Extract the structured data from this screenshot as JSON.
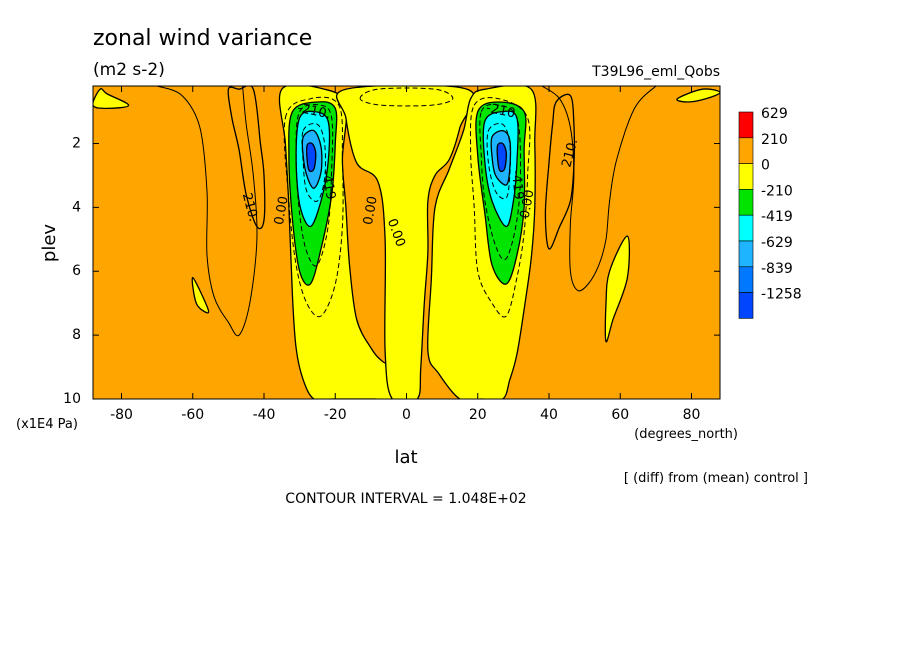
{
  "header": {
    "title": "zonal wind variance",
    "units": "(m2 s-2)",
    "run": "T39L96_eml_Qobs"
  },
  "footer": {
    "diff_note": "[ (diff) from (mean) control ]",
    "contour_interval": "CONTOUR INTERVAL = 1.048E+02"
  },
  "chart_data": {
    "type": "heatmap",
    "title": "zonal wind variance",
    "subtitle": "(m2 s-2)",
    "xlabel": "lat",
    "x_units": "(degrees_north)",
    "ylabel": "plev",
    "y_units": "(x1E4 Pa)",
    "xlim": [
      -88,
      88
    ],
    "ylim": [
      10,
      0.2
    ],
    "x_ticks": [
      -80,
      -60,
      -40,
      -20,
      0,
      20,
      40,
      60,
      80
    ],
    "x_tick_labels": [
      "-80",
      "-60",
      "-40",
      "-20",
      "0",
      "20",
      "40",
      "60",
      "80"
    ],
    "y_ticks": [
      2,
      4,
      6,
      8,
      10
    ],
    "y_tick_labels": [
      "2",
      "4",
      "6",
      "8",
      "10"
    ],
    "colorbar": {
      "labels": [
        "629",
        "210",
        "0",
        "-210",
        "-419",
        "-629",
        "-839",
        "-1258"
      ],
      "colors": [
        "#ff0000",
        "#ffa500",
        "#ffff00",
        "#00e400",
        "#00ffff",
        "#1eb4ff",
        "#0078ff",
        "#0046ff"
      ]
    },
    "contour_labels": [
      {
        "text": "-210.",
        "lat": -26,
        "plev": 1.0,
        "rot": 12
      },
      {
        "text": "-419",
        "lat": -22,
        "plev": 3.3,
        "rot": 80
      },
      {
        "text": "0.00",
        "lat": -35,
        "plev": 4.1,
        "rot": -80
      },
      {
        "text": "210.",
        "lat": -44,
        "plev": 4.0,
        "rot": 75
      },
      {
        "text": "0.00",
        "lat": -10,
        "plev": 4.1,
        "rot": -80
      },
      {
        "text": "0.00",
        "lat": -3,
        "plev": 4.8,
        "rot": 70
      },
      {
        "text": "-210.",
        "lat": 27,
        "plev": 1.0,
        "rot": 12
      },
      {
        "text": "-419",
        "lat": 31,
        "plev": 3.3,
        "rot": 85
      },
      {
        "text": "0.00",
        "lat": 34,
        "plev": 3.9,
        "rot": -80
      },
      {
        "text": "210.",
        "lat": 46,
        "plev": 2.3,
        "rot": -75
      }
    ],
    "regions": [
      {
        "level": "210",
        "pts": [
          [
            -47,
            0.3
          ],
          [
            -43,
            0.3
          ],
          [
            -41,
            2.0
          ],
          [
            -40,
            3.0
          ],
          [
            -40,
            4.4
          ],
          [
            -42,
            4.6
          ],
          [
            -45,
            3.6
          ],
          [
            -47,
            2.2
          ],
          [
            -49,
            1.2
          ],
          [
            -50,
            0.3
          ]
        ]
      },
      {
        "level": "0",
        "pts": [
          [
            -35,
            0.3
          ],
          [
            -23,
            0.3
          ],
          [
            -17,
            0.8
          ],
          [
            -18,
            2.5
          ],
          [
            -17,
            4.0
          ],
          [
            -16,
            5.8
          ],
          [
            -14,
            7.5
          ],
          [
            -10,
            8.4
          ],
          [
            -7,
            8.8
          ],
          [
            -4,
            9.0
          ],
          [
            -1,
            9.3
          ],
          [
            0,
            10
          ],
          [
            -9,
            10
          ],
          [
            -15,
            10
          ],
          [
            -21,
            10
          ],
          [
            -26,
            10
          ],
          [
            -29,
            9.4
          ],
          [
            -31,
            8.4
          ],
          [
            -32,
            6.8
          ],
          [
            -33,
            4.0
          ],
          [
            -34,
            2.0
          ]
        ]
      },
      {
        "level": "0",
        "pts": [
          [
            -17,
            0.3
          ],
          [
            17,
            0.3
          ],
          [
            15,
            1.5
          ],
          [
            12,
            2.5
          ],
          [
            8,
            3.0
          ],
          [
            6,
            3.8
          ],
          [
            6,
            5.4
          ],
          [
            5,
            7.0
          ],
          [
            4,
            9.0
          ],
          [
            3,
            10
          ],
          [
            -4,
            10
          ],
          [
            -6,
            8.5
          ],
          [
            -6,
            5.0
          ],
          [
            -8,
            3.2
          ],
          [
            -14,
            2.6
          ],
          [
            -17,
            1.2
          ]
        ]
      },
      {
        "level": "0",
        "pts": [
          [
            22,
            0.3
          ],
          [
            35,
            0.3
          ],
          [
            36,
            2.0
          ],
          [
            36,
            4.0
          ],
          [
            35,
            5.6
          ],
          [
            33,
            7.2
          ],
          [
            31,
            8.6
          ],
          [
            29,
            9.4
          ],
          [
            27,
            10
          ],
          [
            21,
            10
          ],
          [
            15,
            10
          ],
          [
            9,
            9.2
          ],
          [
            6,
            8.5
          ],
          [
            7,
            6.2
          ],
          [
            8,
            4.0
          ],
          [
            12,
            2.8
          ],
          [
            16,
            1.6
          ],
          [
            18,
            0.6
          ]
        ]
      },
      {
        "level": "210",
        "pts": [
          [
            42,
            0.7
          ],
          [
            46,
            0.5
          ],
          [
            47,
            1.4
          ],
          [
            47,
            2.7
          ],
          [
            46,
            3.8
          ],
          [
            43,
            4.6
          ],
          [
            40,
            5.3
          ],
          [
            39,
            4.2
          ],
          [
            40,
            2.6
          ],
          [
            41,
            1.4
          ]
        ]
      },
      {
        "level": "0",
        "pts": [
          [
            -86,
            0.3
          ],
          [
            -84,
            0.45
          ],
          [
            -78,
            0.8
          ],
          [
            -84,
            0.9
          ],
          [
            -88,
            0.8
          ]
        ]
      },
      {
        "level": "0",
        "pts": [
          [
            -60,
            6.2
          ],
          [
            -56,
            7.1
          ],
          [
            -56,
            7.3
          ],
          [
            -59,
            7.0
          ]
        ]
      },
      {
        "level": "0",
        "pts": [
          [
            57,
            6.0
          ],
          [
            62,
            4.9
          ],
          [
            62,
            6.2
          ],
          [
            58,
            7.5
          ],
          [
            56,
            8.2
          ],
          [
            56,
            7.0
          ]
        ]
      },
      {
        "level": "0",
        "pts": [
          [
            76,
            0.6
          ],
          [
            83,
            0.3
          ],
          [
            88,
            0.4
          ],
          [
            84,
            0.6
          ],
          [
            79,
            0.7
          ]
        ]
      },
      {
        "level": "-210",
        "pts": [
          [
            -32,
            1.0
          ],
          [
            -25,
            0.7
          ],
          [
            -20,
            0.9
          ],
          [
            -20,
            2.0
          ],
          [
            -21,
            3.6
          ],
          [
            -24,
            5.3
          ],
          [
            -27,
            6.4
          ],
          [
            -30,
            6.0
          ],
          [
            -32,
            4.4
          ],
          [
            -33,
            2.4
          ]
        ]
      },
      {
        "level": "-419",
        "pts": [
          [
            -30,
            1.2
          ],
          [
            -26,
            1.0
          ],
          [
            -22,
            1.3
          ],
          [
            -22,
            2.6
          ],
          [
            -24,
            3.8
          ],
          [
            -27,
            4.6
          ],
          [
            -30,
            3.9
          ],
          [
            -31,
            2.4
          ]
        ]
      },
      {
        "level": "-629",
        "pts": [
          [
            -29,
            1.8
          ],
          [
            -26,
            1.6
          ],
          [
            -24,
            2.1
          ],
          [
            -24,
            2.9
          ],
          [
            -26,
            3.4
          ],
          [
            -28,
            3.0
          ],
          [
            -29,
            2.4
          ]
        ]
      },
      {
        "level": "-1258",
        "pts": [
          [
            -28,
            2.1
          ],
          [
            -26.5,
            2.0
          ],
          [
            -25.5,
            2.3
          ],
          [
            -26,
            2.8
          ],
          [
            -27.5,
            2.8
          ]
        ]
      },
      {
        "level": "-210",
        "pts": [
          [
            20,
            1.0
          ],
          [
            26,
            0.7
          ],
          [
            33,
            1.0
          ],
          [
            33,
            2.2
          ],
          [
            33,
            4.0
          ],
          [
            31,
            5.5
          ],
          [
            28,
            6.4
          ],
          [
            24,
            5.8
          ],
          [
            22,
            4.2
          ],
          [
            20,
            2.4
          ]
        ]
      },
      {
        "level": "-419",
        "pts": [
          [
            22,
            1.3
          ],
          [
            27,
            1.0
          ],
          [
            31,
            1.2
          ],
          [
            31,
            2.6
          ],
          [
            30,
            3.8
          ],
          [
            28,
            4.6
          ],
          [
            24,
            3.8
          ],
          [
            22,
            2.6
          ]
        ]
      },
      {
        "level": "-629",
        "pts": [
          [
            24,
            1.8
          ],
          [
            27,
            1.6
          ],
          [
            29,
            1.9
          ],
          [
            29,
            2.8
          ],
          [
            28,
            3.3
          ],
          [
            25,
            3.0
          ],
          [
            24,
            2.4
          ]
        ]
      },
      {
        "level": "-1258",
        "pts": [
          [
            25.5,
            2.1
          ],
          [
            27,
            2.0
          ],
          [
            28,
            2.3
          ],
          [
            27.5,
            2.8
          ],
          [
            26,
            2.8
          ]
        ]
      }
    ],
    "contours": [
      {
        "style": "solid",
        "pts": [
          [
            -70,
            0.2
          ],
          [
            -63,
            0.5
          ],
          [
            -58,
            1.5
          ],
          [
            -56,
            3.5
          ],
          [
            -56,
            5.5
          ],
          [
            -54,
            6.8
          ],
          [
            -50,
            7.6
          ],
          [
            -47,
            8.0
          ],
          [
            -44,
            7.0
          ],
          [
            -42,
            5.0
          ],
          [
            -43,
            3.0
          ],
          [
            -45,
            1.4
          ],
          [
            -46,
            0.2
          ]
        ]
      },
      {
        "style": "solid",
        "pts": [
          [
            70,
            0.2
          ],
          [
            64,
            0.9
          ],
          [
            59,
            2.5
          ],
          [
            57,
            3.8
          ],
          [
            56,
            5.0
          ],
          [
            54,
            5.8
          ],
          [
            51,
            6.4
          ],
          [
            48,
            6.6
          ],
          [
            46,
            6.0
          ],
          [
            46,
            4.5
          ],
          [
            47,
            3.0
          ],
          [
            46,
            1.5
          ],
          [
            43,
            0.6
          ],
          [
            38,
            0.2
          ]
        ]
      },
      {
        "style": "dashed",
        "pts": [
          [
            -13,
            0.6
          ],
          [
            -8,
            0.3
          ],
          [
            8,
            0.3
          ],
          [
            13,
            0.6
          ],
          [
            7,
            0.8
          ],
          [
            -7,
            0.8
          ]
        ]
      },
      {
        "style": "dashed",
        "pts": [
          [
            -34,
            1.2
          ],
          [
            -27,
            0.6
          ],
          [
            -19,
            0.8
          ],
          [
            -18,
            2.5
          ],
          [
            -18,
            4.6
          ],
          [
            -20,
            6.4
          ],
          [
            -24,
            7.4
          ],
          [
            -28,
            7.0
          ],
          [
            -31,
            5.8
          ],
          [
            -33,
            3.8
          ]
        ]
      },
      {
        "style": "dashed",
        "pts": [
          [
            -30,
            1.0
          ],
          [
            -24,
            0.8
          ],
          [
            -21,
            1.2
          ],
          [
            -21,
            2.8
          ],
          [
            -22,
            4.6
          ],
          [
            -25,
            5.8
          ],
          [
            -28,
            5.4
          ],
          [
            -30,
            4.2
          ],
          [
            -31,
            2.4
          ]
        ]
      },
      {
        "style": "dashed",
        "pts": [
          [
            -29,
            1.6
          ],
          [
            -25,
            1.4
          ],
          [
            -23,
            2.0
          ],
          [
            -23,
            3.1
          ],
          [
            -25,
            3.8
          ],
          [
            -28,
            3.5
          ],
          [
            -29,
            2.6
          ]
        ]
      },
      {
        "style": "dashed",
        "pts": [
          [
            19,
            0.8
          ],
          [
            26,
            0.6
          ],
          [
            34,
            1.2
          ],
          [
            34,
            3.0
          ],
          [
            33,
            4.8
          ],
          [
            31,
            6.2
          ],
          [
            28,
            7.4
          ],
          [
            24,
            7.0
          ],
          [
            20,
            6.0
          ],
          [
            19,
            4.0
          ],
          [
            18,
            2.2
          ]
        ]
      },
      {
        "style": "dashed",
        "pts": [
          [
            21,
            1.0
          ],
          [
            26,
            0.8
          ],
          [
            31,
            1.2
          ],
          [
            32,
            2.8
          ],
          [
            31,
            4.4
          ],
          [
            28,
            5.6
          ],
          [
            25,
            5.2
          ],
          [
            22,
            3.8
          ],
          [
            21,
            2.4
          ]
        ]
      },
      {
        "style": "dashed",
        "pts": [
          [
            23,
            1.6
          ],
          [
            27,
            1.4
          ],
          [
            29,
            2.0
          ],
          [
            29,
            3.0
          ],
          [
            28,
            3.7
          ],
          [
            25,
            3.5
          ],
          [
            23,
            2.6
          ]
        ]
      }
    ]
  }
}
